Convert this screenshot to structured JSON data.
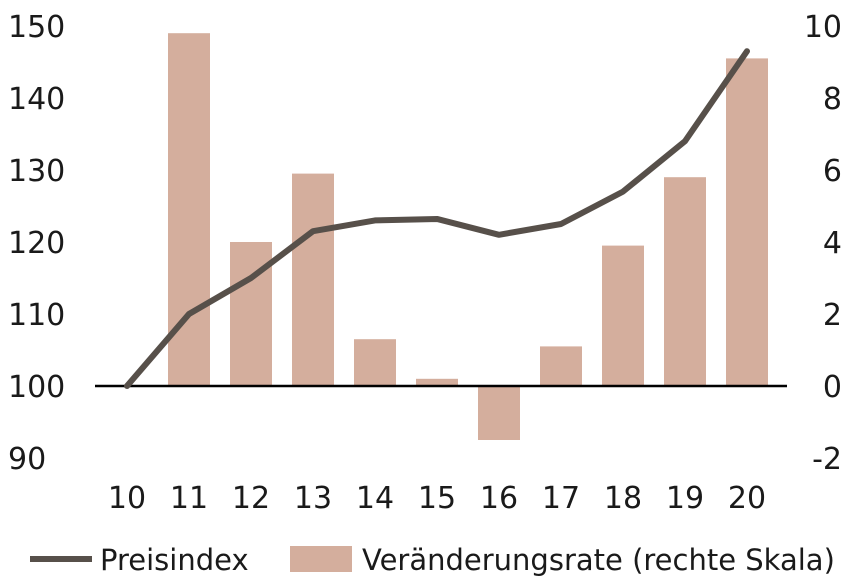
{
  "chart_data": {
    "type": "bar+line",
    "title": "",
    "categories": [
      "10",
      "11",
      "12",
      "13",
      "14",
      "15",
      "16",
      "17",
      "18",
      "19",
      "20"
    ],
    "series": [
      {
        "name": "Preisindex",
        "type": "line",
        "axis": "left",
        "values": [
          100,
          110,
          115,
          121.5,
          123,
          123.2,
          121,
          122.5,
          127,
          134,
          146.5
        ]
      },
      {
        "name": "Veränderungsrate (rechte Skala)",
        "type": "bar",
        "axis": "right",
        "values": [
          0,
          9.8,
          4.0,
          5.9,
          1.3,
          0.2,
          -1.5,
          1.1,
          3.9,
          5.8,
          9.1
        ]
      }
    ],
    "y_left": {
      "ticks": [
        "150",
        "140",
        "130",
        "120",
        "110",
        "100",
        "90"
      ],
      "ylim": [
        90,
        150
      ]
    },
    "y_right": {
      "ticks": [
        "10",
        "8",
        "6",
        "4",
        "2",
        "0",
        "-2"
      ],
      "ylim": [
        -2,
        10
      ]
    },
    "grid": false,
    "legend_position": "bottom",
    "colors": {
      "line": "#57504a",
      "bar": "#d4ae9d",
      "axis": "#000000"
    }
  }
}
